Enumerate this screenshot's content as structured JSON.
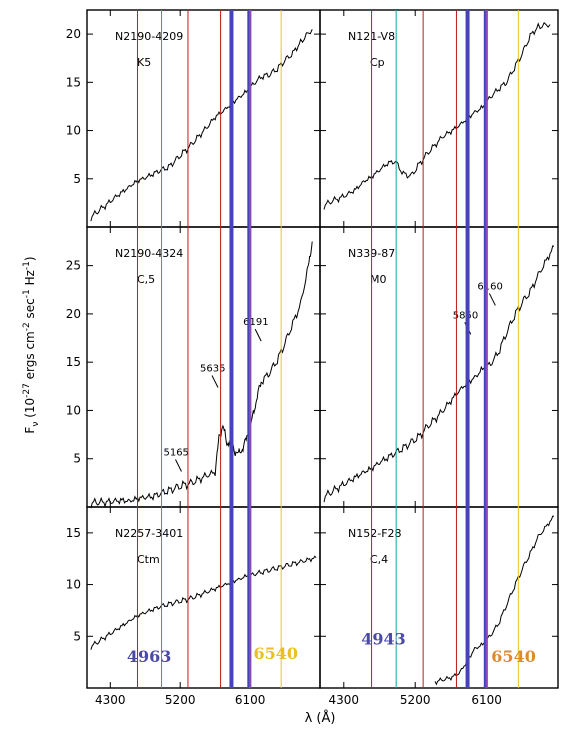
{
  "chart_data": {
    "type": "line",
    "xlabel": "λ (Å)",
    "ylabel": "F_ν (10^-27 ergs cm^-2 sec^-1 Hz^-1)",
    "xlim": [
      4000,
      7000
    ],
    "x_ticks": [
      4300,
      5200,
      6100
    ],
    "grid": false,
    "panels": [
      {
        "id": "p11",
        "row": 0,
        "col": 0,
        "name": "N2190-4209",
        "type_label": "K5",
        "ylim": [
          0,
          22.5
        ],
        "y_ticks": [
          5,
          10,
          15,
          20
        ],
        "x": [
          4050,
          4150,
          4250,
          4350,
          4450,
          4550,
          4650,
          4750,
          4850,
          4950,
          5050,
          5150,
          5250,
          5350,
          5450,
          5550,
          5650,
          5750,
          5850,
          5950,
          6050,
          6150,
          6250,
          6350,
          6450,
          6550,
          6650,
          6750,
          6900
        ],
        "y": [
          1.0,
          1.7,
          2.3,
          3.0,
          3.6,
          4.2,
          4.8,
          5.1,
          5.5,
          5.9,
          6.2,
          7.0,
          7.8,
          8.6,
          9.5,
          10.4,
          11.4,
          12.0,
          12.7,
          13.4,
          14.0,
          14.9,
          15.6,
          15.8,
          16.4,
          17.3,
          18.0,
          19.2,
          20.5
        ]
      },
      {
        "id": "p12",
        "row": 0,
        "col": 1,
        "name": "N121-V8",
        "type_label": "Cp",
        "ylim": [
          0,
          22.5
        ],
        "y_ticks": [
          5,
          10,
          15,
          20
        ],
        "x": [
          4050,
          4150,
          4250,
          4350,
          4450,
          4550,
          4650,
          4750,
          4850,
          4950,
          5050,
          5150,
          5250,
          5350,
          5450,
          5550,
          5650,
          5750,
          5850,
          5950,
          6050,
          6150,
          6250,
          6350,
          6450,
          6550,
          6650,
          6750,
          6900
        ],
        "y": [
          2.2,
          2.7,
          3.0,
          3.4,
          3.9,
          4.7,
          5.2,
          5.9,
          6.6,
          6.8,
          5.5,
          5.3,
          6.5,
          7.6,
          8.5,
          9.4,
          9.9,
          10.5,
          11.2,
          11.9,
          12.4,
          13.5,
          14.3,
          15.0,
          16.5,
          18.0,
          19.8,
          20.8,
          21.0
        ]
      },
      {
        "id": "p21",
        "row": 1,
        "col": 0,
        "name": "N2190-4324",
        "type_label": "C,5",
        "ylim": [
          0,
          29
        ],
        "y_ticks": [
          5,
          10,
          15,
          20,
          25
        ],
        "x": [
          4050,
          4150,
          4250,
          4350,
          4450,
          4550,
          4650,
          4750,
          4850,
          4950,
          5050,
          5150,
          5250,
          5350,
          5450,
          5550,
          5650,
          5700,
          5750,
          5800,
          5850,
          5900,
          5950,
          6000,
          6050,
          6100,
          6150,
          6200,
          6250,
          6350,
          6450,
          6550,
          6650,
          6750,
          6850,
          6900
        ],
        "y": [
          0.4,
          0.5,
          0.5,
          0.6,
          0.7,
          0.6,
          0.9,
          1.0,
          1.1,
          1.4,
          1.7,
          2.0,
          2.3,
          2.5,
          2.9,
          3.3,
          3.6,
          7.2,
          8.5,
          6.5,
          7.0,
          5.8,
          5.5,
          6.0,
          7.0,
          8.3,
          9.9,
          11.8,
          13.0,
          13.9,
          15.2,
          17.0,
          19.0,
          21.0,
          25.0,
          27.5
        ]
      },
      {
        "id": "p22",
        "row": 1,
        "col": 1,
        "name": "N339-87",
        "type_label": "M0",
        "ylim": [
          0,
          29
        ],
        "y_ticks": [
          5,
          10,
          15,
          20,
          25
        ],
        "x": [
          4050,
          4150,
          4250,
          4350,
          4450,
          4550,
          4650,
          4750,
          4850,
          4950,
          5050,
          5150,
          5250,
          5350,
          5450,
          5550,
          5650,
          5750,
          5850,
          5950,
          6050,
          6150,
          6250,
          6350,
          6450,
          6550,
          6650,
          6750,
          6850,
          6950
        ],
        "y": [
          1.0,
          1.6,
          2.1,
          2.6,
          3.1,
          3.6,
          4.0,
          4.6,
          5.1,
          5.6,
          6.1,
          6.7,
          7.3,
          8.3,
          9.1,
          10.0,
          11.0,
          12.0,
          12.8,
          13.4,
          14.3,
          14.8,
          16.0,
          18.0,
          19.8,
          21.2,
          22.3,
          24.0,
          25.5,
          27.0
        ]
      },
      {
        "id": "p31",
        "row": 2,
        "col": 0,
        "name": "N2257-3401",
        "type_label": "Ctm",
        "ylim": [
          0,
          17.5
        ],
        "y_ticks": [
          5,
          10,
          15
        ],
        "x": [
          4050,
          4150,
          4250,
          4350,
          4450,
          4550,
          4650,
          4750,
          4850,
          4950,
          5050,
          5150,
          5250,
          5350,
          5450,
          5550,
          5650,
          5750,
          5850,
          5950,
          6050,
          6150,
          6250,
          6350,
          6450,
          6550,
          6650,
          6750,
          6850,
          6950
        ],
        "y": [
          4.0,
          4.5,
          5.0,
          5.5,
          6.0,
          6.5,
          7.0,
          7.3,
          7.6,
          7.9,
          8.1,
          8.3,
          8.5,
          8.7,
          9.0,
          9.3,
          9.6,
          9.9,
          10.2,
          10.5,
          10.8,
          11.0,
          11.2,
          11.4,
          11.6,
          11.8,
          12.0,
          12.2,
          12.4,
          12.6
        ]
      },
      {
        "id": "p32",
        "row": 2,
        "col": 1,
        "name": "N152-F28",
        "type_label": "C,4",
        "ylim": [
          0,
          17.5
        ],
        "y_ticks": [
          5,
          10,
          15
        ],
        "x": [
          5450,
          5550,
          5650,
          5750,
          5850,
          5950,
          6050,
          6150,
          6250,
          6350,
          6450,
          6550,
          6650,
          6750,
          6850,
          6950
        ],
        "y": [
          0.6,
          0.8,
          1.0,
          1.4,
          2.5,
          3.8,
          4.2,
          5.1,
          6.2,
          8.0,
          9.8,
          11.5,
          13.0,
          14.6,
          15.6,
          16.6
        ]
      }
    ],
    "annotations": {
      "p21": [
        {
          "text": "5165",
          "x": 5165,
          "y": 4.3
        },
        {
          "text": "5635",
          "x": 5635,
          "y": 13.0
        },
        {
          "text": "6191",
          "x": 6191,
          "y": 17.8
        }
      ],
      "p22": [
        {
          "text": "5850",
          "x": 5850,
          "y": 18.5
        },
        {
          "text": "6160",
          "x": 6160,
          "y": 21.5
        }
      ]
    },
    "vertical_lines": {
      "thin_red": [
        4650,
        5300,
        5720
      ],
      "thin_cyan": [
        4960
      ],
      "thin_yellow": [
        6500
      ],
      "thick_blue": [
        5860,
        6090
      ],
      "thin_purple": [
        6100
      ]
    },
    "overlay_numbers": [
      {
        "text": "4963",
        "color": "#4a4aa8",
        "panel": "p31",
        "x": 4800,
        "y": 2.5
      },
      {
        "text": "6540",
        "color": "#e8c020",
        "panel": "p31",
        "x": 6430,
        "y": 2.8
      },
      {
        "text": "4943",
        "color": "#4a4aa8",
        "panel": "p32",
        "x": 4800,
        "y": 4.2
      },
      {
        "text": "6540",
        "color": "#e08a30",
        "panel": "p32",
        "x": 6440,
        "y": 2.5
      }
    ],
    "colors": {
      "red": "#c01a1a",
      "cyan": "#1aa0a8",
      "yellow": "#e8c420",
      "blue": "#4444b8",
      "purple": "#8a4ab8",
      "spectrum": "#000000"
    }
  }
}
